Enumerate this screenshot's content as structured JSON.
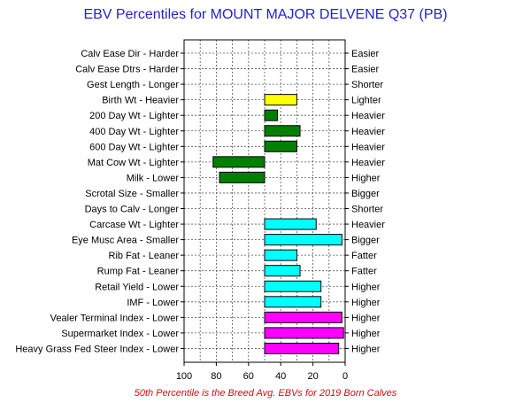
{
  "chart_data": {
    "type": "bar",
    "orientation": "horizontal",
    "title": "EBV Percentiles for MOUNT MAJOR DELVENE Q37 (PB)",
    "footnote": "50th Percentile is the Breed Avg. EBVs for 2019 Born Calves",
    "x_axis": {
      "range": [
        100,
        0
      ],
      "ticks": [
        "100",
        "80",
        "60",
        "40",
        "20",
        "0"
      ],
      "reversed": true
    },
    "baseline": 50,
    "grid": true,
    "categories": [
      "Calv Ease Dir - Harder",
      "Calv Ease Dtrs - Harder",
      "Gest Length - Longer",
      "Birth Wt - Heavier",
      "200 Day Wt - Lighter",
      "400 Day Wt - Lighter",
      "600 Day Wt - Lighter",
      "Mat Cow Wt - Lighter",
      "Milk - Lower",
      "Scrotal Size - Smaller",
      "Days to Calv - Longer",
      "Carcase Wt - Lighter",
      "Eye Musc Area - Smaller",
      "Rib Fat - Leaner",
      "Rump Fat - Leaner",
      "Retail Yield - Lower",
      "IMF - Lower",
      "Vealer Terminal Index - Lower",
      "Supermarket Index - Lower",
      "Heavy Grass Fed Steer Index - Lower"
    ],
    "right_labels": [
      "Easier",
      "Easier",
      "Shorter",
      "Lighter",
      "Heavier",
      "Heavier",
      "Heavier",
      "Heavier",
      "Higher",
      "Bigger",
      "Shorter",
      "Heavier",
      "Bigger",
      "Fatter",
      "Fatter",
      "Higher",
      "Higher",
      "Higher",
      "Higher",
      "Higher"
    ],
    "values": [
      null,
      null,
      null,
      30,
      42,
      28,
      30,
      82,
      78,
      null,
      null,
      18,
      2,
      30,
      28,
      15,
      15,
      2,
      1,
      4
    ],
    "colors": [
      "#ffff00",
      "#ffff00",
      "#ffff00",
      "#ffff00",
      "#008000",
      "#008000",
      "#008000",
      "#008000",
      "#008000",
      "#008000",
      "#008000",
      "#00ffff",
      "#00ffff",
      "#00ffff",
      "#00ffff",
      "#00ffff",
      "#00ffff",
      "#ff00ff",
      "#ff00ff",
      "#ff00ff"
    ]
  }
}
